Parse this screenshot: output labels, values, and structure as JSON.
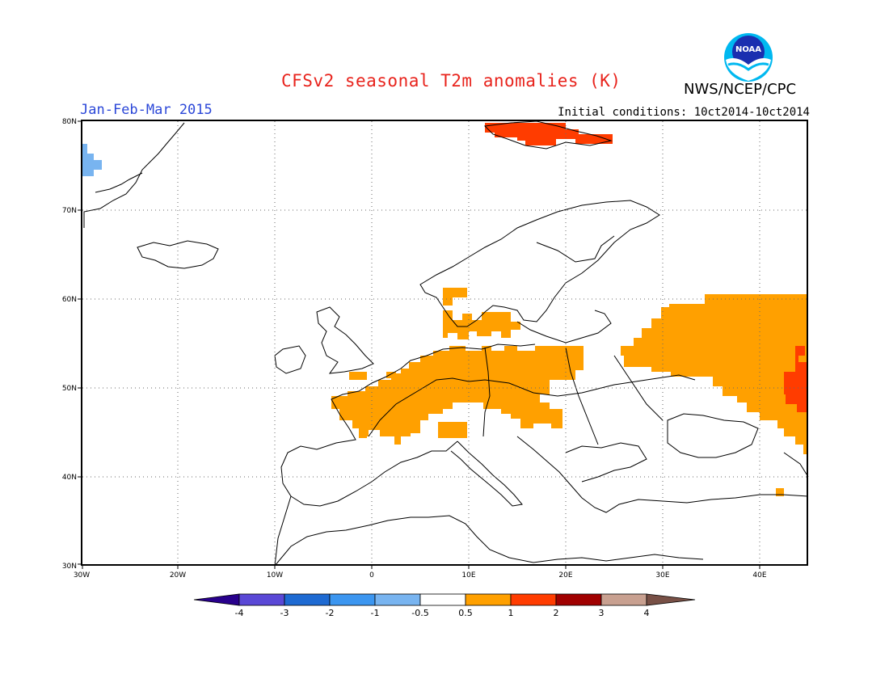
{
  "header": {
    "title": "CFSv2 seasonal T2m anomalies (K)",
    "agency": "NWS/NCEP/CPC",
    "season": "Jan-Feb-Mar 2015",
    "initial_conditions": "Initial conditions: 10ct2014-10ct2014",
    "logo_text": "NOAA"
  },
  "map": {
    "lat_labels": [
      "80N",
      "70N",
      "60N",
      "50N",
      "40N",
      "30N"
    ],
    "lon_labels": [
      "30W",
      "20W",
      "10W",
      "0",
      "10E",
      "20E",
      "30E",
      "40E"
    ],
    "extent": {
      "lon_min": -30,
      "lon_max": 45,
      "lat_min": 30,
      "lat_max": 80
    },
    "grid": "dotted"
  },
  "colorbar": {
    "tick_labels": [
      "-4",
      "-3",
      "-2",
      "-1",
      "-0.5",
      "0.5",
      "1",
      "2",
      "3",
      "4"
    ],
    "colors": [
      "#28008c",
      "#5a48d6",
      "#1e6ad2",
      "#3c96f0",
      "#78b4f0",
      "#ffffff",
      "#ffa000",
      "#ff3c00",
      "#a00000",
      "#c8a090",
      "#785046"
    ]
  },
  "anomalies": [
    {
      "region": "Arctic NW (Greenland coast)",
      "category": "-1 to -0.5",
      "color": "#78b4f0"
    },
    {
      "region": "Svalbard",
      "category": "1 to 2",
      "color": "#ff3c00"
    },
    {
      "region": "Western & Central Europe",
      "category": "0.5 to 1",
      "color": "#ffa000"
    },
    {
      "region": "Western Russia",
      "category": "0.5 to 1",
      "color": "#ffa000"
    },
    {
      "region": "Ural foothills",
      "category": "1 to 2",
      "color": "#ff3c00"
    }
  ]
}
